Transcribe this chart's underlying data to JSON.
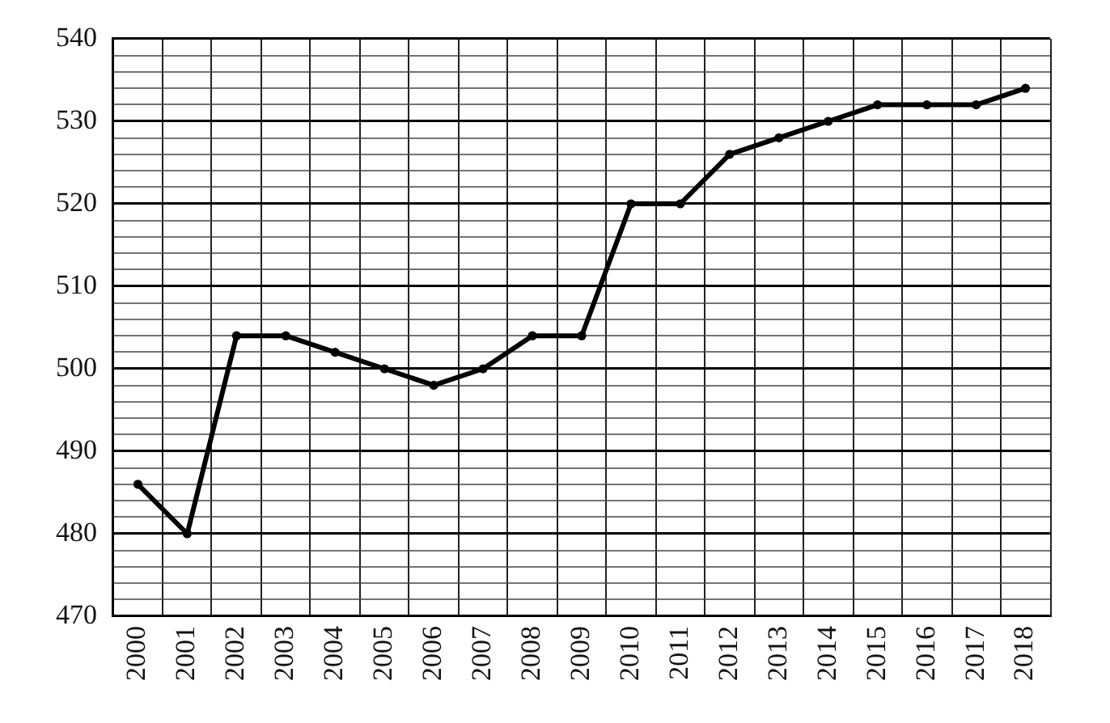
{
  "chart_data": {
    "type": "line",
    "categories": [
      "2000",
      "2001",
      "2002",
      "2003",
      "2004",
      "2005",
      "2006",
      "2007",
      "2008",
      "2009",
      "2010",
      "2011",
      "2012",
      "2013",
      "2014",
      "2015",
      "2016",
      "2017",
      "2018"
    ],
    "values": [
      486,
      480,
      504,
      504,
      502,
      500,
      498,
      500,
      504,
      504,
      520,
      520,
      526,
      528,
      530,
      532,
      532,
      532,
      534
    ],
    "color": "#000000",
    "ylim": [
      470,
      540
    ],
    "yticks": [
      470,
      {
        "value": 472,
        "label": null
      },
      {
        "value": 474,
        "label": null
      },
      {
        "value": 476,
        "label": null
      },
      {
        "value": 478,
        "label": null
      },
      480,
      {
        "value": 482,
        "label": null
      },
      {
        "value": 484,
        "label": null
      },
      {
        "value": 486,
        "label": null
      },
      {
        "value": 488,
        "label": null
      },
      490,
      {
        "value": 492,
        "label": null
      },
      {
        "value": 494,
        "label": null
      },
      {
        "value": 496,
        "label": null
      },
      {
        "value": 498,
        "label": null
      },
      500,
      {
        "value": 502,
        "label": null
      },
      {
        "value": 504,
        "label": null
      },
      {
        "value": 506,
        "label": null
      },
      {
        "value": 508,
        "label": null
      },
      510,
      {
        "value": 512,
        "label": null
      },
      {
        "value": 514,
        "label": null
      },
      {
        "value": 516,
        "label": null
      },
      {
        "value": 518,
        "label": null
      },
      520,
      {
        "value": 522,
        "label": null
      },
      {
        "value": 524,
        "label": null
      },
      {
        "value": 526,
        "label": null
      },
      {
        "value": 528,
        "label": null
      },
      530,
      {
        "value": 532,
        "label": null
      },
      {
        "value": 534,
        "label": null
      },
      {
        "value": 536,
        "label": null
      },
      {
        "value": 538,
        "label": null
      },
      540
    ],
    "grid": true,
    "marker": "circle"
  }
}
